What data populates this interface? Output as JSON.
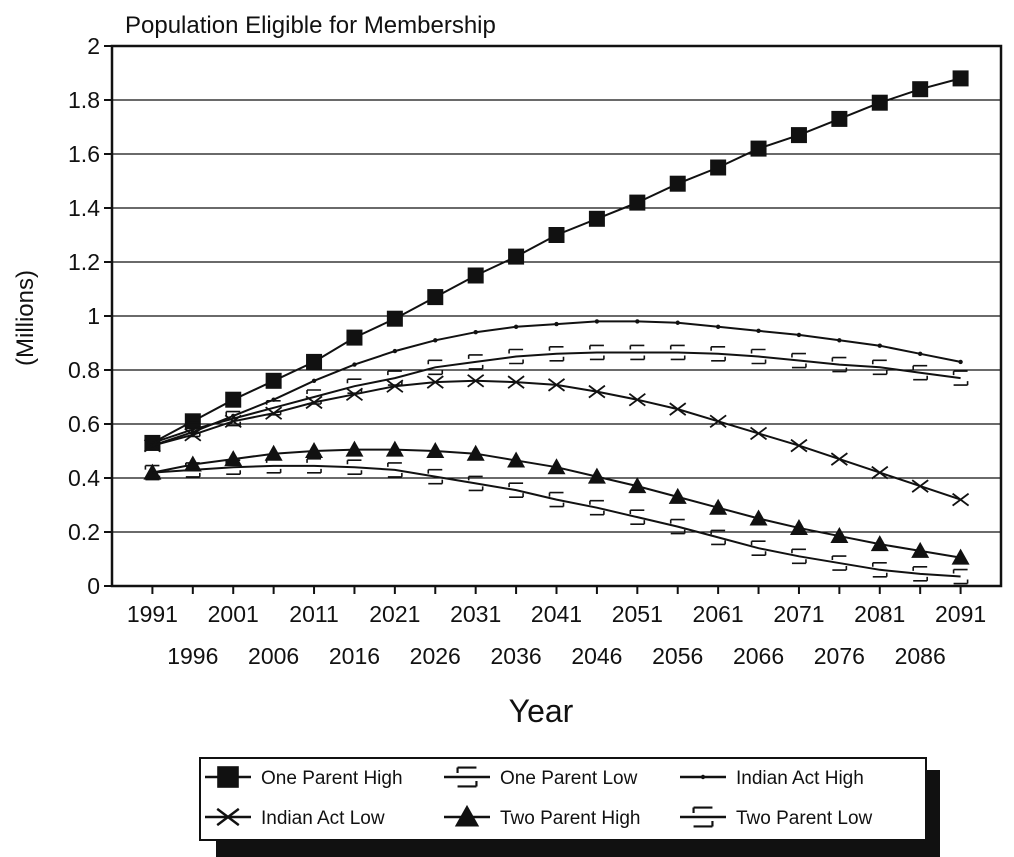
{
  "chart_data": {
    "type": "line",
    "title": "Population Eligible for Membership",
    "xlabel": "Year",
    "ylabel": "(Millions)",
    "x": [
      1991,
      1996,
      2001,
      2006,
      2011,
      2016,
      2021,
      2026,
      2031,
      2036,
      2041,
      2046,
      2051,
      2056,
      2061,
      2066,
      2071,
      2076,
      2081,
      2086,
      2091
    ],
    "x_tick_labels_row1": [
      "1991",
      "2001",
      "2011",
      "2021",
      "2031",
      "2041",
      "2051",
      "2061",
      "2071",
      "2081",
      "2091"
    ],
    "x_tick_labels_row2": [
      "1996",
      "2006",
      "2016",
      "2026",
      "2036",
      "2046",
      "2056",
      "2066",
      "2076",
      "2086"
    ],
    "ylim": [
      0,
      2
    ],
    "y_ticks": [
      "0",
      "0.2",
      "0.4",
      "0.6",
      "0.8",
      "1",
      "1.2",
      "1.4",
      "1.6",
      "1.8",
      "2"
    ],
    "grid": true,
    "legend_position": "bottom",
    "series": [
      {
        "name": "One Parent High",
        "marker": "square",
        "values": [
          0.53,
          0.61,
          0.69,
          0.76,
          0.83,
          0.92,
          0.99,
          1.07,
          1.15,
          1.22,
          1.3,
          1.36,
          1.42,
          1.49,
          1.55,
          1.62,
          1.67,
          1.73,
          1.79,
          1.84,
          1.88
        ]
      },
      {
        "name": "One Parent Low",
        "marker": "bracket",
        "values": [
          0.53,
          0.58,
          0.62,
          0.66,
          0.7,
          0.74,
          0.77,
          0.81,
          0.83,
          0.85,
          0.86,
          0.865,
          0.865,
          0.865,
          0.86,
          0.85,
          0.835,
          0.82,
          0.81,
          0.79,
          0.77
        ]
      },
      {
        "name": "Indian Act High",
        "marker": "dot",
        "values": [
          0.52,
          0.57,
          0.63,
          0.69,
          0.76,
          0.82,
          0.87,
          0.91,
          0.94,
          0.96,
          0.97,
          0.98,
          0.98,
          0.975,
          0.96,
          0.945,
          0.93,
          0.91,
          0.89,
          0.86,
          0.83
        ]
      },
      {
        "name": "Indian Act Low",
        "marker": "x",
        "values": [
          0.52,
          0.56,
          0.61,
          0.64,
          0.68,
          0.71,
          0.74,
          0.755,
          0.76,
          0.755,
          0.745,
          0.72,
          0.69,
          0.655,
          0.61,
          0.565,
          0.52,
          0.47,
          0.42,
          0.37,
          0.32
        ]
      },
      {
        "name": "Two Parent High",
        "marker": "triangle",
        "values": [
          0.42,
          0.45,
          0.47,
          0.49,
          0.5,
          0.505,
          0.505,
          0.5,
          0.49,
          0.465,
          0.44,
          0.405,
          0.37,
          0.33,
          0.29,
          0.25,
          0.215,
          0.185,
          0.155,
          0.13,
          0.105
        ]
      },
      {
        "name": "Two Parent Low",
        "marker": "bracket",
        "values": [
          0.42,
          0.43,
          0.44,
          0.445,
          0.445,
          0.44,
          0.43,
          0.405,
          0.38,
          0.355,
          0.32,
          0.29,
          0.255,
          0.22,
          0.18,
          0.14,
          0.11,
          0.085,
          0.06,
          0.045,
          0.035
        ]
      }
    ]
  }
}
